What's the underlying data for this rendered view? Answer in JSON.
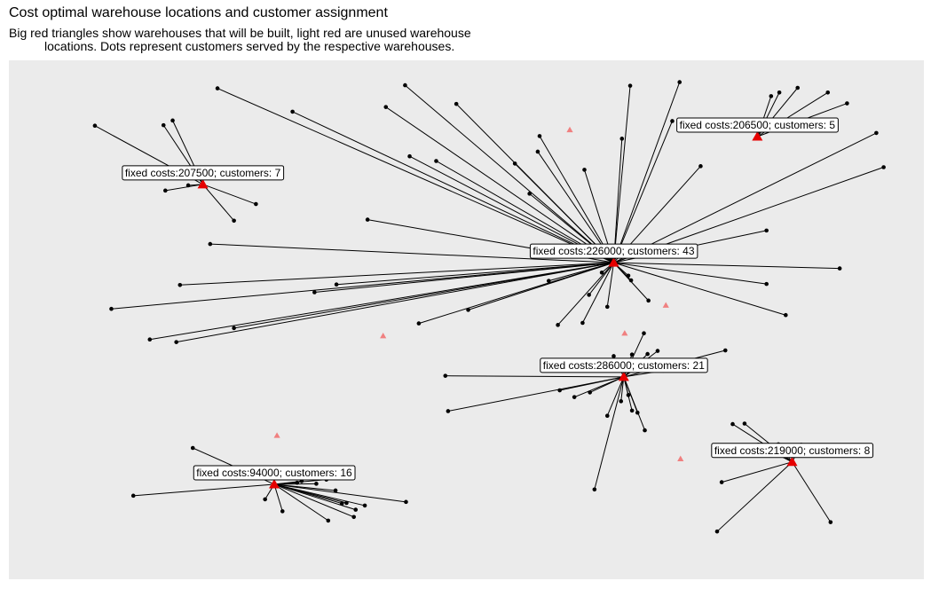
{
  "chart_data": {
    "type": "scatter",
    "title": "Cost optimal warehouse locations and customer assignment",
    "subtitle_line1": "Big red triangles show warehouses that will be built, light red are unused warehouse",
    "subtitle_line2": "locations. Dots represent customers served by the respective warehouses.",
    "xlabel": "",
    "ylabel": "",
    "xlim": [
      0,
      100
    ],
    "ylim": [
      0,
      100
    ],
    "grid": false,
    "colors": {
      "panel": "#ebebeb",
      "built": "#e60000",
      "unused": "#f08080",
      "customer": "#000000",
      "line": "#000000"
    },
    "unused_warehouses": [
      [
        61.3,
        86.6
      ],
      [
        71.8,
        52.8
      ],
      [
        67.3,
        47.4
      ],
      [
        40.9,
        46.9
      ],
      [
        73.4,
        23.2
      ],
      [
        29.3,
        27.7
      ]
    ],
    "warehouses": [
      {
        "label": "fixed costs:207500; customers: 7",
        "x": 21.2,
        "y": 76.1,
        "customers": [
          [
            9.4,
            87.4
          ],
          [
            16.9,
            87.5
          ],
          [
            17.9,
            88.4
          ],
          [
            17.1,
            74.9
          ],
          [
            24.6,
            69.1
          ],
          [
            27.0,
            72.3
          ],
          [
            19.6,
            75.9
          ]
        ]
      },
      {
        "label": "fixed costs:206500; customers: 5",
        "x": 81.8,
        "y": 85.3,
        "customers": [
          [
            83.3,
            93.1
          ],
          [
            84.2,
            93.8
          ],
          [
            86.2,
            94.7
          ],
          [
            89.5,
            93.8
          ],
          [
            91.6,
            91.7
          ]
        ]
      },
      {
        "label": "fixed costs:226000; customers: 43",
        "x": 66.1,
        "y": 61.0,
        "customers": [
          [
            22.8,
            94.6
          ],
          [
            31.0,
            90.1
          ],
          [
            43.3,
            95.2
          ],
          [
            41.2,
            91.0
          ],
          [
            48.9,
            91.6
          ],
          [
            43.8,
            81.5
          ],
          [
            46.7,
            80.6
          ],
          [
            55.3,
            80.1
          ],
          [
            57.8,
            82.4
          ],
          [
            58.0,
            85.4
          ],
          [
            56.9,
            74.3
          ],
          [
            62.9,
            78.9
          ],
          [
            67.0,
            84.9
          ],
          [
            67.9,
            95.1
          ],
          [
            73.3,
            95.8
          ],
          [
            72.5,
            88.3
          ],
          [
            75.6,
            79.6
          ],
          [
            94.8,
            86.0
          ],
          [
            95.6,
            79.4
          ],
          [
            82.8,
            67.2
          ],
          [
            39.2,
            69.3
          ],
          [
            22.0,
            64.6
          ],
          [
            11.2,
            52.1
          ],
          [
            18.7,
            56.7
          ],
          [
            33.4,
            55.3
          ],
          [
            35.8,
            56.8
          ],
          [
            90.8,
            59.9
          ],
          [
            82.8,
            56.9
          ],
          [
            84.9,
            50.9
          ],
          [
            59.0,
            57.5
          ],
          [
            63.4,
            54.8
          ],
          [
            65.4,
            52.5
          ],
          [
            69.9,
            53.7
          ],
          [
            67.7,
            58.5
          ],
          [
            60.0,
            49.0
          ],
          [
            62.7,
            49.4
          ],
          [
            50.2,
            51.9
          ],
          [
            44.8,
            49.3
          ],
          [
            24.6,
            48.4
          ],
          [
            15.4,
            46.2
          ],
          [
            18.3,
            45.7
          ],
          [
            68.0,
            57.6
          ],
          [
            64.8,
            59.1
          ]
        ]
      },
      {
        "label": "fixed costs:286000; customers: 21",
        "x": 67.2,
        "y": 39.0,
        "customers": [
          [
            47.7,
            39.2
          ],
          [
            60.2,
            36.4
          ],
          [
            61.8,
            35.1
          ],
          [
            63.5,
            36.0
          ],
          [
            48.0,
            32.4
          ],
          [
            65.4,
            31.5
          ],
          [
            64.0,
            17.3
          ],
          [
            66.1,
            43.0
          ],
          [
            68.1,
            43.3
          ],
          [
            69.8,
            43.4
          ],
          [
            70.9,
            44.0
          ],
          [
            78.3,
            44.1
          ],
          [
            69.4,
            47.4
          ],
          [
            68.5,
            40.6
          ],
          [
            67.7,
            35.5
          ],
          [
            68.1,
            32.5
          ],
          [
            68.7,
            32.1
          ],
          [
            69.5,
            28.7
          ],
          [
            66.9,
            34.3
          ],
          [
            71.5,
            40.2
          ],
          [
            69.0,
            41.4
          ]
        ]
      },
      {
        "label": "fixed costs:219000; customers: 8",
        "x": 85.6,
        "y": 22.6,
        "customers": [
          [
            79.1,
            29.9
          ],
          [
            80.4,
            30.0
          ],
          [
            77.9,
            18.7
          ],
          [
            77.4,
            9.2
          ],
          [
            89.8,
            11.0
          ],
          [
            84.1,
            26.0
          ],
          [
            86.6,
            25.9
          ],
          [
            81.9,
            25.9
          ]
        ]
      },
      {
        "label": "fixed costs:94000; customers: 16",
        "x": 29.0,
        "y": 18.3,
        "customers": [
          [
            20.1,
            25.3
          ],
          [
            13.6,
            16.1
          ],
          [
            28.0,
            15.4
          ],
          [
            29.9,
            13.1
          ],
          [
            33.6,
            18.4
          ],
          [
            34.7,
            19.2
          ],
          [
            35.7,
            17.1
          ],
          [
            36.4,
            14.6
          ],
          [
            36.9,
            14.7
          ],
          [
            37.9,
            13.4
          ],
          [
            38.9,
            14.2
          ],
          [
            34.9,
            11.3
          ],
          [
            37.7,
            12.0
          ],
          [
            43.4,
            14.9
          ],
          [
            32.0,
            18.9
          ],
          [
            31.5,
            18.6
          ]
        ]
      }
    ]
  }
}
